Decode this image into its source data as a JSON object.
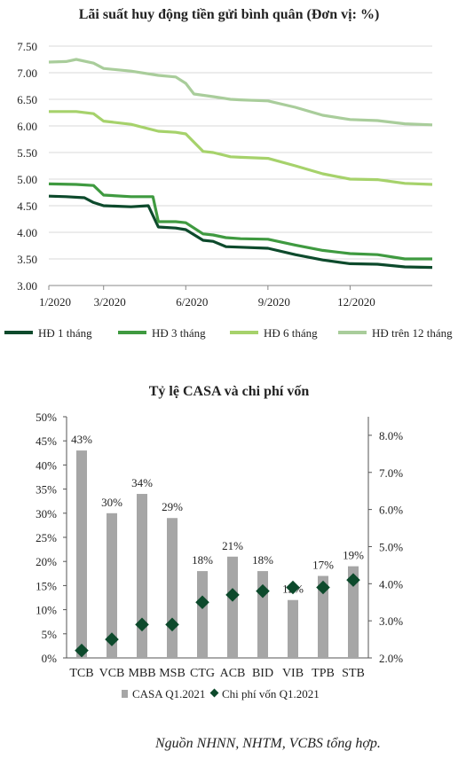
{
  "chart_data": [
    {
      "type": "line",
      "title": "Lãi suất huy động tiền gửi bình quân (Đơn vị: %)",
      "ylim": [
        3.0,
        7.5
      ],
      "yticks": [
        "3.00",
        "3.50",
        "4.00",
        "4.50",
        "5.00",
        "5.50",
        "6.00",
        "6.50",
        "7.00",
        "7.50"
      ],
      "xticks": [
        "1/2020",
        "3/2020",
        "6/2020",
        "9/2020",
        "12/2020"
      ],
      "x_range": [
        "2020-01",
        "2021-03"
      ],
      "grid": true,
      "legend_position": "bottom",
      "series": [
        {
          "name": "HĐ 1 tháng",
          "color": "#0d4a2c",
          "points": [
            [
              "2020-01",
              4.68
            ],
            [
              "2020-01-20",
              4.67
            ],
            [
              "2020-02-10",
              4.65
            ],
            [
              "2020-02-20",
              4.56
            ],
            [
              "2020-03",
              4.5
            ],
            [
              "2020-04",
              4.48
            ],
            [
              "2020-04-20",
              4.5
            ],
            [
              "2020-05",
              4.1
            ],
            [
              "2020-05-20",
              4.08
            ],
            [
              "2020-06",
              4.05
            ],
            [
              "2020-06-20",
              3.85
            ],
            [
              "2020-07",
              3.83
            ],
            [
              "2020-07-15",
              3.73
            ],
            [
              "2020-08",
              3.72
            ],
            [
              "2020-09",
              3.7
            ],
            [
              "2020-10",
              3.58
            ],
            [
              "2020-11",
              3.48
            ],
            [
              "2020-12",
              3.41
            ],
            [
              "2021-01",
              3.4
            ],
            [
              "2021-02",
              3.35
            ],
            [
              "2021-03",
              3.34
            ]
          ]
        },
        {
          "name": "HĐ 3 tháng",
          "color": "#3f9a40",
          "points": [
            [
              "2020-01",
              4.91
            ],
            [
              "2020-02",
              4.9
            ],
            [
              "2020-02-20",
              4.88
            ],
            [
              "2020-03",
              4.7
            ],
            [
              "2020-04",
              4.67
            ],
            [
              "2020-04-25",
              4.67
            ],
            [
              "2020-05",
              4.2
            ],
            [
              "2020-05-20",
              4.2
            ],
            [
              "2020-06",
              4.18
            ],
            [
              "2020-06-20",
              3.97
            ],
            [
              "2020-07",
              3.95
            ],
            [
              "2020-07-15",
              3.9
            ],
            [
              "2020-08",
              3.88
            ],
            [
              "2020-09",
              3.87
            ],
            [
              "2020-10",
              3.76
            ],
            [
              "2020-11",
              3.66
            ],
            [
              "2020-12",
              3.6
            ],
            [
              "2021-01",
              3.58
            ],
            [
              "2021-02",
              3.5
            ],
            [
              "2021-03",
              3.5
            ]
          ]
        },
        {
          "name": "HĐ 6 tháng",
          "color": "#a6d26b",
          "points": [
            [
              "2020-01",
              6.27
            ],
            [
              "2020-02",
              6.27
            ],
            [
              "2020-02-20",
              6.23
            ],
            [
              "2020-03",
              6.09
            ],
            [
              "2020-04",
              6.03
            ],
            [
              "2020-05",
              5.9
            ],
            [
              "2020-05-20",
              5.88
            ],
            [
              "2020-06",
              5.85
            ],
            [
              "2020-06-20",
              5.52
            ],
            [
              "2020-07",
              5.5
            ],
            [
              "2020-07-20",
              5.42
            ],
            [
              "2020-08",
              5.41
            ],
            [
              "2020-09",
              5.39
            ],
            [
              "2020-10",
              5.25
            ],
            [
              "2020-11",
              5.1
            ],
            [
              "2020-12",
              5.0
            ],
            [
              "2021-01",
              4.99
            ],
            [
              "2021-02",
              4.92
            ],
            [
              "2021-03",
              4.9
            ]
          ]
        },
        {
          "name": "HĐ trên 12 tháng",
          "color": "#a9cd9b",
          "points": [
            [
              "2020-01",
              7.2
            ],
            [
              "2020-01-20",
              7.21
            ],
            [
              "2020-02",
              7.25
            ],
            [
              "2020-02-20",
              7.18
            ],
            [
              "2020-03",
              7.08
            ],
            [
              "2020-04",
              7.03
            ],
            [
              "2020-05",
              6.95
            ],
            [
              "2020-05-20",
              6.92
            ],
            [
              "2020-06",
              6.8
            ],
            [
              "2020-06-10",
              6.6
            ],
            [
              "2020-07",
              6.55
            ],
            [
              "2020-07-20",
              6.5
            ],
            [
              "2020-08",
              6.49
            ],
            [
              "2020-09",
              6.47
            ],
            [
              "2020-10",
              6.35
            ],
            [
              "2020-11",
              6.2
            ],
            [
              "2020-12",
              6.12
            ],
            [
              "2021-01",
              6.1
            ],
            [
              "2021-02",
              6.04
            ],
            [
              "2021-03",
              6.02
            ]
          ]
        }
      ]
    },
    {
      "type": "bar",
      "title": "Tỷ lệ CASA và chi phí vốn",
      "categories": [
        "TCB",
        "VCB",
        "MBB",
        "MSB",
        "CTG",
        "ACB",
        "BID",
        "VIB",
        "TPB",
        "STB"
      ],
      "ylim": [
        0,
        50
      ],
      "yticks": [
        "0%",
        "5%",
        "10%",
        "15%",
        "20%",
        "25%",
        "30%",
        "35%",
        "40%",
        "45%",
        "50%"
      ],
      "y2lim": [
        2.0,
        8.5
      ],
      "y2ticks": [
        "2.0%",
        "3.0%",
        "4.0%",
        "5.0%",
        "6.0%",
        "7.0%",
        "8.0%"
      ],
      "grid": false,
      "legend_position": "bottom",
      "series": [
        {
          "name": "CASA Q1.2021",
          "type": "bar",
          "axis": "left",
          "color": "#a6a6a6",
          "values": [
            43,
            30,
            34,
            29,
            18,
            21,
            18,
            12,
            17,
            19
          ],
          "labels": [
            "43%",
            "30%",
            "34%",
            "29%",
            "18%",
            "21%",
            "18%",
            "12%",
            "17%",
            "19%"
          ]
        },
        {
          "name": "Chi phí vốn Q1.2021",
          "type": "scatter",
          "axis": "right",
          "color": "#0d4a2c",
          "values": [
            2.2,
            2.5,
            2.9,
            2.9,
            3.5,
            3.7,
            3.8,
            3.9,
            3.9,
            4.1
          ]
        }
      ]
    }
  ],
  "source_note": "Nguồn NHNN, NHTM, VCBS tổng hợp."
}
